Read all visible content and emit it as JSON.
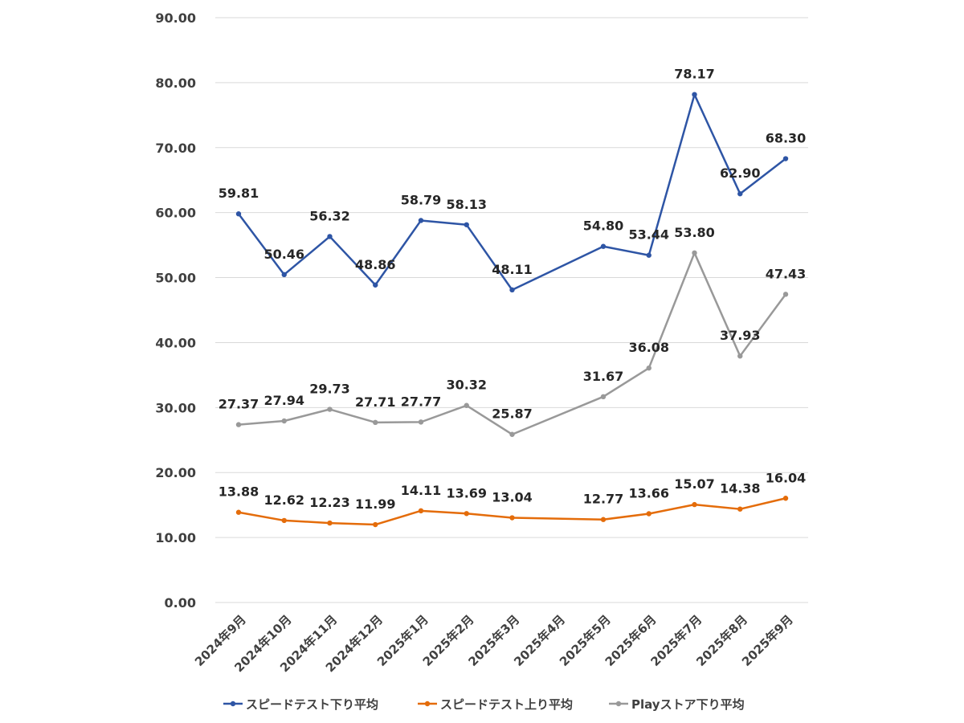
{
  "chart_data": {
    "type": "line",
    "categories": [
      "2024年9月",
      "2024年10月",
      "2024年11月",
      "2024年12月",
      "2025年1月",
      "2025年2月",
      "2025年3月",
      "2025年4月",
      "2025年5月",
      "2025年6月",
      "2025年7月",
      "2025年8月",
      "2025年9月"
    ],
    "series": [
      {
        "name": "スピードテスト下り平均",
        "color": "#2e55a5",
        "values": [
          59.81,
          50.46,
          56.32,
          48.86,
          58.79,
          58.13,
          48.11,
          null,
          54.8,
          53.44,
          78.17,
          62.9,
          68.3
        ],
        "labels": [
          "59.81",
          "50.46",
          "56.32",
          "48.86",
          "58.79",
          "58.13",
          "48.11",
          null,
          "54.80",
          "53.44",
          "78.17",
          "62.90",
          "68.30"
        ]
      },
      {
        "name": "スピードテスト上り平均",
        "color": "#e46c0a",
        "values": [
          13.88,
          12.62,
          12.23,
          11.99,
          14.11,
          13.69,
          13.04,
          null,
          12.77,
          13.66,
          15.07,
          14.38,
          16.04
        ],
        "labels": [
          "13.88",
          "12.62",
          "12.23",
          "11.99",
          "14.11",
          "13.69",
          "13.04",
          null,
          "12.77",
          "13.66",
          "15.07",
          "14.38",
          "16.04"
        ]
      },
      {
        "name": "Playストア下り平均",
        "color": "#999999",
        "values": [
          27.37,
          27.94,
          29.73,
          27.71,
          27.77,
          30.32,
          25.87,
          null,
          31.67,
          36.08,
          53.8,
          37.93,
          47.43
        ],
        "labels": [
          "27.37",
          "27.94",
          "29.73",
          "27.71",
          "27.77",
          "30.32",
          "25.87",
          null,
          "31.67",
          "36.08",
          "53.80",
          "37.93",
          "47.43"
        ]
      }
    ],
    "yticks": [
      "0.00",
      "10.00",
      "20.00",
      "30.00",
      "40.00",
      "50.00",
      "60.00",
      "70.00",
      "80.00",
      "90.00"
    ],
    "ylim": [
      0,
      90
    ],
    "grid": true,
    "legend_position": "bottom",
    "title": "",
    "xlabel": "",
    "ylabel": ""
  }
}
